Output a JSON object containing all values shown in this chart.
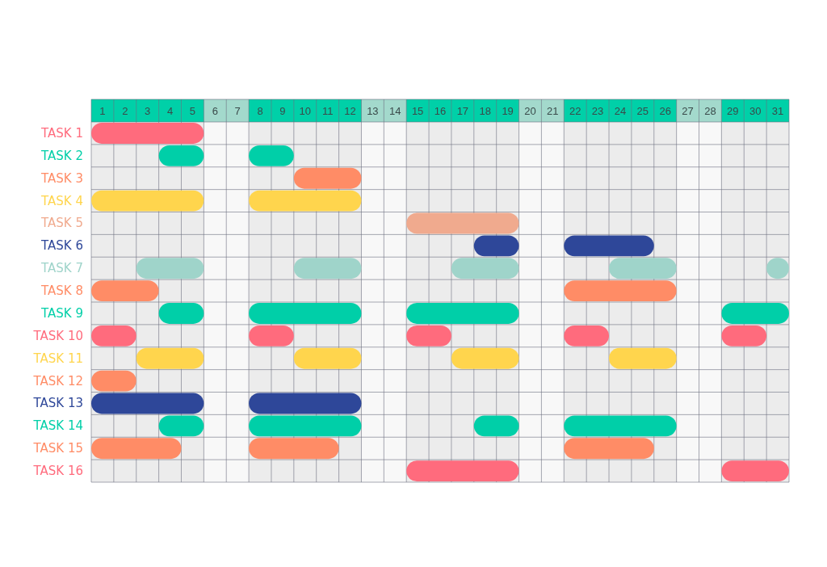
{
  "chart_data": {
    "type": "bar",
    "orientation": "horizontal",
    "categories": [
      "TASK 1",
      "TASK 2",
      "TASK 3",
      "TASK 4",
      "TASK 5",
      "TASK 6",
      "TASK 7",
      "TASK 8",
      "TASK 9",
      "TASK 10",
      "TASK 11",
      "TASK 12",
      "TASK 13",
      "TASK 14",
      "TASK 15",
      "TASK 16"
    ],
    "xlim": [
      0.5,
      31.5
    ],
    "xticks": [
      1,
      2,
      3,
      4,
      5,
      6,
      7,
      8,
      9,
      10,
      11,
      12,
      13,
      14,
      15,
      16,
      17,
      18,
      19,
      20,
      21,
      22,
      23,
      24,
      25,
      26,
      27,
      28,
      29,
      30,
      31
    ],
    "grid": true,
    "bands": [
      {
        "axis": "x",
        "from": 5.5,
        "to": 7.5,
        "color": "#f8f8f8"
      },
      {
        "axis": "x",
        "from": 12.5,
        "to": 14.5,
        "color": "#f8f8f8"
      },
      {
        "axis": "x",
        "from": 19.5,
        "to": 21.5,
        "color": "#f8f8f8"
      },
      {
        "axis": "x",
        "from": 26.5,
        "to": 28.5,
        "color": "#f8f8f8"
      }
    ],
    "series": [
      {
        "colors": [
          "#ff6b7d",
          "#00cfa8",
          "#ff8c66",
          "#ffd54d",
          "#f0aa8e",
          "#2e4799",
          "#9fd4ca",
          "#ff8c66",
          "#00cfa8",
          "#ff6b7d",
          "#ffd54d",
          "#ff8c66",
          "#2e4799",
          "#00cfa8",
          "#ff8c66",
          "#ff6b7d"
        ],
        "base": [
          0.5,
          3.5,
          9.5,
          0.5,
          14.5,
          17.5,
          2.5,
          0.5,
          3.5,
          0.5,
          2.5,
          0.5,
          0.5,
          3.5,
          0.5,
          14.5
        ],
        "values": [
          5,
          2,
          3,
          5,
          5,
          2,
          3,
          3,
          2,
          2,
          3,
          2,
          5,
          2,
          4,
          5
        ]
      },
      {
        "colors": [
          null,
          "#00cfa8",
          null,
          "#ffd54d",
          null,
          "#2e4799",
          "#9fd4ca",
          "#ff8c66",
          "#00cfa8",
          "#ff6b7d",
          "#ffd54d",
          null,
          "#2e4799",
          "#00cfa8",
          "#ff8c66",
          "#ff6b7d"
        ],
        "base": [
          null,
          7.5,
          null,
          7.5,
          null,
          21.5,
          9.5,
          21.5,
          7.5,
          7.5,
          9.5,
          null,
          7.5,
          7.5,
          7.5,
          28.5
        ],
        "values": [
          null,
          2,
          null,
          5,
          null,
          4,
          3,
          5,
          5,
          2,
          3,
          null,
          5,
          5,
          4,
          3
        ]
      },
      {
        "colors": [
          null,
          null,
          null,
          null,
          null,
          null,
          "#9fd4ca",
          null,
          "#00cfa8",
          "#ff6b7d",
          "#ffd54d",
          null,
          null,
          "#00cfa8",
          "#ff8c66",
          null
        ],
        "base": [
          null,
          null,
          null,
          null,
          null,
          null,
          16.5,
          null,
          14.5,
          14.5,
          16.5,
          null,
          null,
          17.5,
          21.5,
          null
        ],
        "values": [
          null,
          null,
          null,
          null,
          null,
          null,
          3,
          null,
          5,
          2,
          3,
          null,
          null,
          2,
          4,
          null
        ]
      },
      {
        "colors": [
          null,
          null,
          null,
          null,
          null,
          null,
          "#9fd4ca",
          null,
          "#00cfa8",
          "#ff6b7d",
          "#ffd54d",
          null,
          null,
          "#00cfa8",
          null,
          null
        ],
        "base": [
          null,
          null,
          null,
          null,
          null,
          null,
          23.5,
          null,
          28.5,
          21.5,
          23.5,
          null,
          null,
          21.5,
          null,
          null
        ],
        "values": [
          null,
          null,
          null,
          null,
          null,
          null,
          3,
          null,
          3,
          2,
          3,
          null,
          null,
          5,
          null,
          null
        ]
      },
      {
        "colors": [
          null,
          null,
          null,
          null,
          null,
          null,
          "#9fd4ca",
          null,
          null,
          "#ff6b7d",
          null,
          null,
          null,
          null,
          null,
          null
        ],
        "base": [
          null,
          null,
          null,
          null,
          null,
          null,
          30.5,
          null,
          null,
          28.5,
          null,
          null,
          null,
          null,
          null,
          null
        ],
        "values": [
          null,
          null,
          null,
          null,
          null,
          null,
          1,
          null,
          null,
          2,
          null,
          null,
          null,
          null,
          null,
          null
        ]
      }
    ]
  }
}
